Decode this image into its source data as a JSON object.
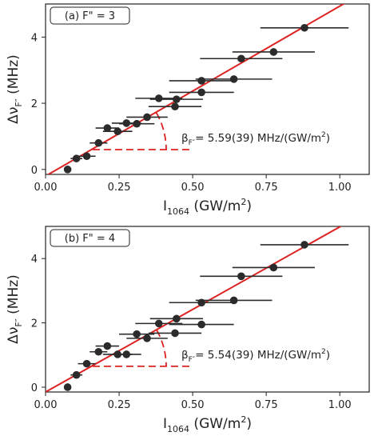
{
  "chart_data": [
    {
      "type": "scatter",
      "panel_label": "(a) F\" = 3",
      "xlabel_main": "I",
      "xlabel_sub": "1064",
      "xlabel_tail": " (GW/m",
      "xlabel_sup": "2",
      "xlabel_end": ")",
      "ylabel_main": "Δν",
      "ylabel_sub": "F″",
      "ylabel_tail": " (MHz)",
      "xlim": [
        0.0,
        1.1
      ],
      "ylim": [
        -0.15,
        5.0
      ],
      "xticks": [
        0.0,
        0.25,
        0.5,
        0.75,
        1.0
      ],
      "xtick_labels": [
        "0.00",
        "0.25",
        "0.50",
        "0.75",
        "1.00"
      ],
      "yticks": [
        0,
        2,
        4
      ],
      "ytick_labels": [
        "0",
        "2",
        "4"
      ],
      "points": [
        {
          "x": 0.075,
          "y": 0.0,
          "xerr": 0.0
        },
        {
          "x": 0.105,
          "y": 0.33,
          "xerr": 0.02
        },
        {
          "x": 0.14,
          "y": 0.4,
          "xerr": 0.03
        },
        {
          "x": 0.18,
          "y": 0.8,
          "xerr": 0.03
        },
        {
          "x": 0.21,
          "y": 1.25,
          "xerr": 0.04
        },
        {
          "x": 0.245,
          "y": 1.15,
          "xerr": 0.05
        },
        {
          "x": 0.275,
          "y": 1.4,
          "xerr": 0.05
        },
        {
          "x": 0.31,
          "y": 1.38,
          "xerr": 0.06
        },
        {
          "x": 0.345,
          "y": 1.58,
          "xerr": 0.07
        },
        {
          "x": 0.385,
          "y": 2.15,
          "xerr": 0.08
        },
        {
          "x": 0.44,
          "y": 1.9,
          "xerr": 0.09
        },
        {
          "x": 0.445,
          "y": 2.12,
          "xerr": 0.09
        },
        {
          "x": 0.53,
          "y": 2.68,
          "xerr": 0.11
        },
        {
          "x": 0.53,
          "y": 2.33,
          "xerr": 0.11
        },
        {
          "x": 0.64,
          "y": 2.73,
          "xerr": 0.13
        },
        {
          "x": 0.665,
          "y": 3.35,
          "xerr": 0.14
        },
        {
          "x": 0.775,
          "y": 3.55,
          "xerr": 0.14
        },
        {
          "x": 0.88,
          "y": 4.28,
          "xerr": 0.15
        }
      ],
      "fit_line": {
        "x1": 0.0,
        "y1": -0.2,
        "x2": 1.1,
        "y2": 5.45
      },
      "annotation": {
        "beta": "β",
        "beta_sub": "F″",
        "text": "= 5.59(39) MHz/(GW/m",
        "sup": "2",
        "end": ")"
      },
      "angle_marker": {
        "vertex_x": 0.16,
        "vertex_y": 0.6,
        "end_x": 0.5,
        "arc_radius_x": 0.25
      },
      "colors": {
        "points": "#2b2b2b",
        "fit": "#dd2222",
        "annotation_line": "#dd2222"
      }
    },
    {
      "type": "scatter",
      "panel_label": "(b) F\" = 4",
      "xlabel_main": "I",
      "xlabel_sub": "1064",
      "xlabel_tail": " (GW/m",
      "xlabel_sup": "2",
      "xlabel_end": ")",
      "ylabel_main": "Δν",
      "ylabel_sub": "F″",
      "ylabel_tail": " (MHz)",
      "xlim": [
        0.0,
        1.1
      ],
      "ylim": [
        -0.15,
        5.0
      ],
      "xticks": [
        0.0,
        0.25,
        0.5,
        0.75,
        1.0
      ],
      "xtick_labels": [
        "0.00",
        "0.25",
        "0.50",
        "0.75",
        "1.00"
      ],
      "yticks": [
        0,
        2,
        4
      ],
      "ytick_labels": [
        "0",
        "2",
        "4"
      ],
      "points": [
        {
          "x": 0.075,
          "y": 0.0,
          "xerr": 0.0
        },
        {
          "x": 0.105,
          "y": 0.38,
          "xerr": 0.02
        },
        {
          "x": 0.14,
          "y": 0.73,
          "xerr": 0.03
        },
        {
          "x": 0.18,
          "y": 1.1,
          "xerr": 0.03
        },
        {
          "x": 0.21,
          "y": 1.28,
          "xerr": 0.04
        },
        {
          "x": 0.245,
          "y": 1.02,
          "xerr": 0.05
        },
        {
          "x": 0.275,
          "y": 1.02,
          "xerr": 0.05
        },
        {
          "x": 0.31,
          "y": 1.65,
          "xerr": 0.06
        },
        {
          "x": 0.345,
          "y": 1.52,
          "xerr": 0.07
        },
        {
          "x": 0.385,
          "y": 1.98,
          "xerr": 0.08
        },
        {
          "x": 0.44,
          "y": 1.68,
          "xerr": 0.09
        },
        {
          "x": 0.445,
          "y": 2.13,
          "xerr": 0.09
        },
        {
          "x": 0.53,
          "y": 2.63,
          "xerr": 0.11
        },
        {
          "x": 0.53,
          "y": 1.95,
          "xerr": 0.11
        },
        {
          "x": 0.64,
          "y": 2.7,
          "xerr": 0.13
        },
        {
          "x": 0.665,
          "y": 3.45,
          "xerr": 0.14
        },
        {
          "x": 0.775,
          "y": 3.72,
          "xerr": 0.14
        },
        {
          "x": 0.88,
          "y": 4.43,
          "xerr": 0.15
        }
      ],
      "fit_line": {
        "x1": 0.0,
        "y1": -0.15,
        "x2": 1.1,
        "y2": 5.5
      },
      "annotation": {
        "beta": "β",
        "beta_sub": "F″",
        "text": "= 5.54(39) MHz/(GW/m",
        "sup": "2",
        "end": ")"
      },
      "angle_marker": {
        "vertex_x": 0.16,
        "vertex_y": 0.65,
        "end_x": 0.5,
        "arc_radius_x": 0.25
      },
      "colors": {
        "points": "#2b2b2b",
        "fit": "#dd2222",
        "annotation_line": "#dd2222"
      }
    }
  ]
}
